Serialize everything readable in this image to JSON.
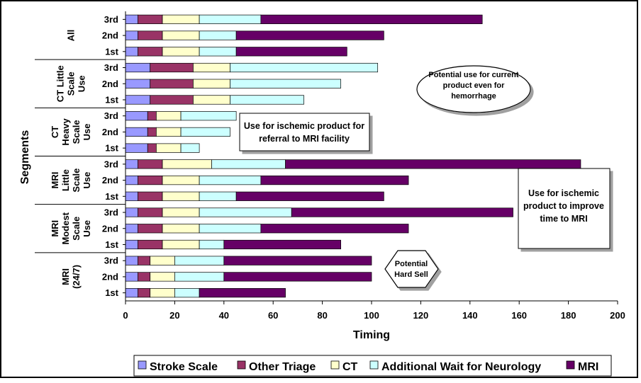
{
  "chart_data": {
    "type": "bar",
    "orientation": "horizontal",
    "stacked": true,
    "xlabel": "Timing",
    "ylabel": "Segments",
    "xlim": [
      0,
      200
    ],
    "xticks": [
      0,
      20,
      40,
      60,
      80,
      100,
      120,
      140,
      160,
      180,
      200
    ],
    "grid": false,
    "legend_position": "bottom",
    "series_names": [
      "Stroke Scale",
      "Other Triage",
      "CT",
      "Additional Wait for Neurology",
      "MRI"
    ],
    "colors": [
      "#9999ff",
      "#993366",
      "#ffffcc",
      "#ccffff",
      "#660066"
    ],
    "groups": [
      {
        "label": "All",
        "bars": [
          {
            "label": "3rd",
            "values": [
              5,
              10,
              15,
              25,
              90
            ]
          },
          {
            "label": "2nd",
            "values": [
              5,
              10,
              15,
              15,
              60
            ]
          },
          {
            "label": "1st",
            "values": [
              5,
              10,
              15,
              15,
              45
            ]
          }
        ]
      },
      {
        "label": "CT Little Scale Use",
        "bars": [
          {
            "label": "3rd",
            "values": [
              10,
              17.5,
              15,
              60,
              0
            ]
          },
          {
            "label": "2nd",
            "values": [
              10,
              17.5,
              15,
              45,
              0
            ]
          },
          {
            "label": "1st",
            "values": [
              10,
              17.5,
              15,
              30,
              0
            ]
          }
        ]
      },
      {
        "label": "CT Heavy Scale Use",
        "bars": [
          {
            "label": "3rd",
            "values": [
              9,
              3.5,
              10,
              22.5,
              0
            ]
          },
          {
            "label": "2nd",
            "values": [
              9,
              3.5,
              10,
              20,
              0
            ]
          },
          {
            "label": "1st",
            "values": [
              9,
              3.5,
              10,
              7.5,
              0
            ]
          }
        ]
      },
      {
        "label": "MRI Little Scale Use",
        "bars": [
          {
            "label": "3rd",
            "values": [
              5,
              10,
              20,
              30,
              120
            ]
          },
          {
            "label": "2nd",
            "values": [
              5,
              10,
              15,
              25,
              60
            ]
          },
          {
            "label": "1st",
            "values": [
              5,
              10,
              15,
              15,
              60
            ]
          }
        ]
      },
      {
        "label": "MRI Modest Scale Use",
        "bars": [
          {
            "label": "3rd",
            "values": [
              5,
              10,
              15,
              37.5,
              90
            ]
          },
          {
            "label": "2nd",
            "values": [
              5,
              10,
              15,
              25,
              60
            ]
          },
          {
            "label": "1st",
            "values": [
              5,
              10,
              15,
              10,
              47.5
            ]
          }
        ]
      },
      {
        "label": "MRI (24/7)",
        "bars": [
          {
            "label": "3rd",
            "values": [
              5,
              5,
              10,
              20,
              60
            ]
          },
          {
            "label": "2nd",
            "values": [
              5,
              5,
              10,
              20,
              60
            ]
          },
          {
            "label": "1st",
            "values": [
              5,
              5,
              10,
              10,
              35
            ]
          }
        ]
      }
    ],
    "annotations": [
      {
        "name": "annotation-current-product",
        "text": "Potential use for current product even for hemorrhage"
      },
      {
        "name": "annotation-referral",
        "text": "Use for ischemic product for referral to MRI facility"
      },
      {
        "name": "annotation-improve-time",
        "text": "Use for ischemic product to improve time to MRI"
      },
      {
        "name": "annotation-hard-sell",
        "text": "Potential Hard Sell"
      }
    ]
  }
}
